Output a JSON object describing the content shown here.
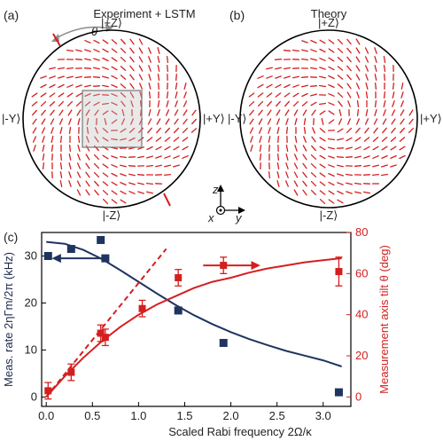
{
  "colors": {
    "blue": "#1f3460",
    "red": "#d41f1f",
    "gray": "#8c8c8c"
  },
  "panel_a": {
    "tag": "(a)",
    "title": "Experiment + LSTM",
    "theta": "θ",
    "labels": {
      "top": "|+Z⟩",
      "bottom": "|-Z⟩",
      "left": "|-Y⟩",
      "right": "|+Y⟩"
    }
  },
  "panel_b": {
    "tag": "(b)",
    "title": "Theory",
    "labels": {
      "top": "|+Z⟩",
      "bottom": "|-Z⟩",
      "left": "|-Y⟩",
      "right": "|+Y⟩"
    }
  },
  "axes_icon": {
    "z": "z",
    "x": "x",
    "y": "y"
  },
  "panel_c": {
    "tag": "(c)"
  },
  "chart_data": {
    "type": "scatter",
    "xlabel": "Scaled Rabi frequency 2Ω/κ",
    "xlim": [
      -0.05,
      3.3
    ],
    "xticks": [
      "0.0",
      "0.5",
      "1.0",
      "1.5",
      "2.0",
      "2.5",
      "3.0"
    ],
    "y_left": {
      "label": "Meas. rate 2ηΓm/2π (kHz)",
      "lim": [
        -2,
        35
      ],
      "ticks": [
        "0",
        "10",
        "20",
        "30"
      ]
    },
    "y_right": {
      "label": "Measurement axis tilt θ (deg)",
      "lim": [
        -4.6,
        80
      ],
      "ticks": [
        "0",
        "20",
        "40",
        "60",
        "80"
      ]
    },
    "series": [
      {
        "axis": "left",
        "x": [
          0.02,
          0.27,
          0.59,
          0.64,
          1.43,
          1.92,
          3.17
        ],
        "y": [
          30.0,
          31.5,
          33.4,
          29.5,
          18.4,
          11.5,
          1.0
        ]
      },
      {
        "axis": "left",
        "x": [
          0.0,
          0.2,
          0.4,
          0.6,
          0.8,
          1.0,
          1.2,
          1.4,
          1.6,
          1.8,
          2.0,
          2.2,
          2.4,
          2.6,
          2.8,
          3.0,
          3.2
        ],
        "y": [
          33.0,
          32.6,
          31.3,
          29.4,
          27.0,
          24.5,
          22.0,
          19.6,
          17.4,
          15.5,
          13.8,
          12.3,
          11.0,
          9.8,
          8.8,
          7.8,
          6.5
        ]
      },
      {
        "axis": "right",
        "x": [
          0.02,
          0.27,
          0.59,
          0.64,
          1.04,
          1.43,
          1.92,
          3.17
        ],
        "y": [
          3,
          12,
          31,
          29,
          43,
          58,
          64,
          61
        ],
        "err": [
          4,
          4,
          4,
          4,
          4,
          4,
          4,
          7
        ]
      },
      {
        "axis": "right",
        "x": [
          0.0,
          0.2,
          0.4,
          0.6,
          0.8,
          1.0,
          1.2,
          1.4,
          1.6,
          1.8,
          2.0,
          2.2,
          2.4,
          2.6,
          2.8,
          3.0,
          3.2
        ],
        "y": [
          0,
          10,
          19,
          27,
          34,
          40,
          45,
          49,
          53,
          56,
          58,
          60.5,
          62.5,
          64,
          65.5,
          66.5,
          67.5
        ]
      },
      {
        "axis": "right",
        "x": [
          0.0,
          1.3
        ],
        "y": [
          0,
          72
        ]
      }
    ]
  }
}
